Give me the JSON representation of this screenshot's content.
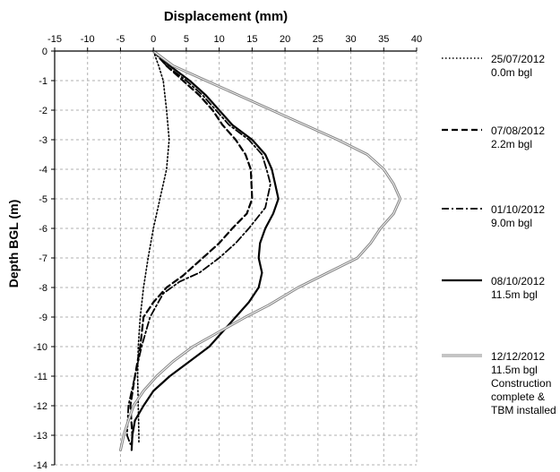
{
  "chart_data": {
    "type": "line",
    "title": "Displacement (mm)",
    "xlabel": "",
    "ylabel": "Depth BGL (m)",
    "xlim": [
      -15,
      40
    ],
    "ylim": [
      -14,
      0
    ],
    "x_ticks": [
      "-15",
      "-10",
      "-5",
      "0",
      "5",
      "10",
      "15",
      "20",
      "25",
      "30",
      "35",
      "40"
    ],
    "y_ticks": [
      "0",
      "-1",
      "-2",
      "-3",
      "-4",
      "-5",
      "-6",
      "-7",
      "-8",
      "-9",
      "-10",
      "-11",
      "-12",
      "-13",
      "-14"
    ],
    "grid": true,
    "x_axis_position": "top",
    "legend_position": "right",
    "series": [
      {
        "name": "25/07/2012 0.0m bgl",
        "legend_lines": [
          "25/07/2012",
          "0.0m bgl"
        ],
        "style": "dotted",
        "color": "#000000",
        "points": [
          [
            0,
            0
          ],
          [
            0.8,
            -0.5
          ],
          [
            1.5,
            -1
          ],
          [
            2,
            -2
          ],
          [
            2.4,
            -3
          ],
          [
            2,
            -4
          ],
          [
            1,
            -5
          ],
          [
            0,
            -6
          ],
          [
            -0.8,
            -7
          ],
          [
            -1.5,
            -8
          ],
          [
            -2,
            -9
          ],
          [
            -2.3,
            -10
          ],
          [
            -2.4,
            -11
          ],
          [
            -2.3,
            -12
          ],
          [
            -2.2,
            -13
          ],
          [
            -2.2,
            -13.3
          ]
        ]
      },
      {
        "name": "07/08/2012 2.2m bgl",
        "legend_lines": [
          "07/08/2012",
          "2.2m bgl"
        ],
        "style": "dashed",
        "color": "#000000",
        "points": [
          [
            0,
            0
          ],
          [
            2,
            -0.5
          ],
          [
            4.5,
            -1
          ],
          [
            7,
            -1.5
          ],
          [
            9,
            -2
          ],
          [
            10.5,
            -2.5
          ],
          [
            12.5,
            -3
          ],
          [
            14,
            -3.5
          ],
          [
            14.8,
            -4
          ],
          [
            15,
            -5
          ],
          [
            14.2,
            -5.5
          ],
          [
            12,
            -6
          ],
          [
            10,
            -6.5
          ],
          [
            7.5,
            -7
          ],
          [
            4.5,
            -7.6
          ],
          [
            2,
            -8
          ],
          [
            0,
            -8.5
          ],
          [
            -1.5,
            -9
          ],
          [
            -2,
            -10
          ],
          [
            -2.8,
            -11
          ],
          [
            -3.5,
            -12
          ],
          [
            -3.2,
            -13
          ],
          [
            -3.3,
            -13.3
          ]
        ]
      },
      {
        "name": "01/10/2012 9.0m bgl",
        "legend_lines": [
          "01/10/2012",
          "9.0m bgl"
        ],
        "style": "dashdot",
        "color": "#000000",
        "points": [
          [
            0,
            0
          ],
          [
            2,
            -0.5
          ],
          [
            5,
            -1
          ],
          [
            7.5,
            -1.5
          ],
          [
            9.5,
            -2
          ],
          [
            11.5,
            -2.5
          ],
          [
            14.5,
            -3
          ],
          [
            16.5,
            -3.5
          ],
          [
            17.2,
            -4
          ],
          [
            17.8,
            -4.5
          ],
          [
            17,
            -5.3
          ],
          [
            14.5,
            -6
          ],
          [
            12.5,
            -6.5
          ],
          [
            10,
            -7
          ],
          [
            7,
            -7.5
          ],
          [
            4,
            -7.8
          ],
          [
            1.5,
            -8.2
          ],
          [
            -0.5,
            -9
          ],
          [
            -1.8,
            -10
          ],
          [
            -2.8,
            -11
          ],
          [
            -3.8,
            -12
          ],
          [
            -4,
            -13
          ],
          [
            -3.5,
            -13.3
          ]
        ]
      },
      {
        "name": "08/10/2012 11.5m bgl",
        "legend_lines": [
          "08/10/2012",
          "11.5m bgl"
        ],
        "style": "solid",
        "color": "#000000",
        "points": [
          [
            0,
            0
          ],
          [
            2.5,
            -0.5
          ],
          [
            5.5,
            -1
          ],
          [
            8,
            -1.5
          ],
          [
            10,
            -2
          ],
          [
            12,
            -2.5
          ],
          [
            15,
            -3
          ],
          [
            17,
            -3.5
          ],
          [
            18,
            -4
          ],
          [
            18.5,
            -4.5
          ],
          [
            19,
            -5
          ],
          [
            18.2,
            -5.5
          ],
          [
            17,
            -6
          ],
          [
            16.2,
            -6.5
          ],
          [
            16,
            -7
          ],
          [
            16.5,
            -7.5
          ],
          [
            16,
            -8
          ],
          [
            14.5,
            -8.5
          ],
          [
            12.5,
            -9
          ],
          [
            10.5,
            -9.5
          ],
          [
            8.5,
            -10
          ],
          [
            5.5,
            -10.5
          ],
          [
            2.5,
            -11
          ],
          [
            0,
            -11.5
          ],
          [
            -1.5,
            -12
          ],
          [
            -2.8,
            -12.5
          ],
          [
            -3.2,
            -13
          ],
          [
            -3.3,
            -13.5
          ]
        ]
      },
      {
        "name": "12/12/2012 11.5m bgl Construction complete & TBM installed",
        "legend_lines": [
          "12/12/2012",
          "11.5m bgl",
          "Construction",
          "complete &",
          "TBM installed"
        ],
        "style": "solid-double",
        "color": "#888888",
        "points": [
          [
            0,
            0
          ],
          [
            3,
            -0.5
          ],
          [
            8,
            -1
          ],
          [
            13,
            -1.5
          ],
          [
            18,
            -2
          ],
          [
            23,
            -2.5
          ],
          [
            28,
            -3
          ],
          [
            32.5,
            -3.5
          ],
          [
            35,
            -4
          ],
          [
            36.5,
            -4.5
          ],
          [
            37.5,
            -5
          ],
          [
            36.5,
            -5.5
          ],
          [
            34.5,
            -6
          ],
          [
            33,
            -6.5
          ],
          [
            31,
            -7
          ],
          [
            26.5,
            -7.5
          ],
          [
            22,
            -8
          ],
          [
            17.5,
            -8.6
          ],
          [
            14,
            -9
          ],
          [
            10,
            -9.5
          ],
          [
            6,
            -10
          ],
          [
            3,
            -10.5
          ],
          [
            0.5,
            -11
          ],
          [
            -1.5,
            -11.5
          ],
          [
            -3,
            -12
          ],
          [
            -3.8,
            -12.5
          ],
          [
            -4.5,
            -13
          ],
          [
            -5,
            -13.5
          ]
        ]
      }
    ]
  }
}
